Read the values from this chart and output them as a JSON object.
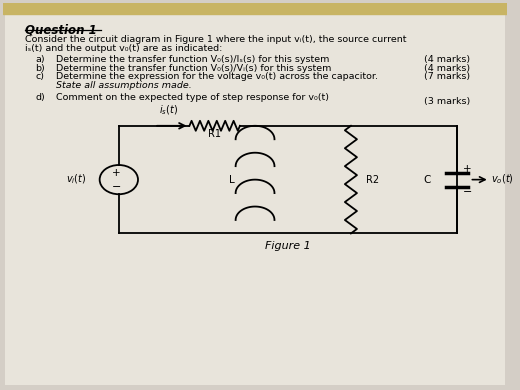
{
  "bg_color": "#d4cec6",
  "paper_color": "#e8e4db",
  "title": "Question 1",
  "intro_line1": "Consider the circuit diagram in Figure 1 where the input vᵢ(t), the source current",
  "intro_line2": "iₛ(t) and the output v₀(t) are as indicated:",
  "qa_label": "a)",
  "qa_text": "Determine the transfer function V₀(s)/Iₛ(s) for this system",
  "qa_marks": "(4 marks)",
  "qb_label": "b)",
  "qb_text": "Determine the transfer function V₀(s)/Vᵢ(s) for this system",
  "qb_marks": "(4 marks)",
  "qc_label": "c)",
  "qc_text": "Determine the expression for the voltage v₀(t) across the capacitor.",
  "qc_text2": "State all assumptions made.",
  "qc_marks": "(7 marks)",
  "qd_label": "d)",
  "qd_text": "Comment on the expected type of step response for v₀(t)",
  "qd_marks": "(3 marks)",
  "figure_label": "Figure 1",
  "top_strip_color": "#c8b464"
}
